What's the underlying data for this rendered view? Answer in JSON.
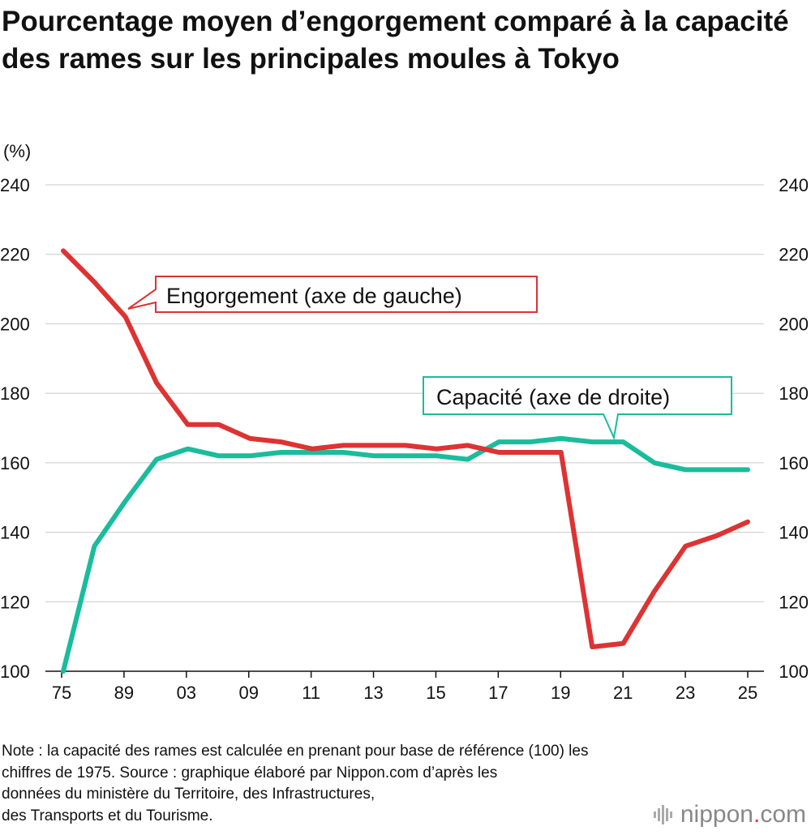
{
  "chart_data": {
    "type": "line",
    "title": "Pourcentage moyen d’engorgement comparé à la capacité des rames sur les principales moules à Tokyo",
    "unit_label": "(%)",
    "x_tick_labels": [
      "75",
      "89",
      "03",
      "09",
      "11",
      "13",
      "15",
      "17",
      "19",
      "21",
      "23",
      "25"
    ],
    "left_axis": {
      "ylim": [
        100,
        240
      ],
      "ticks": [
        100,
        120,
        140,
        160,
        180,
        200,
        220,
        240
      ]
    },
    "right_axis": {
      "ylim": [
        100,
        240
      ],
      "ticks": [
        100,
        120,
        140,
        160,
        180,
        200,
        220,
        240
      ]
    },
    "grid": true,
    "series": [
      {
        "name": "Engorgement (axe de gauche)",
        "axis": "left",
        "color": "#dd3333",
        "x": [
          0,
          1,
          2,
          3,
          4,
          5,
          6,
          7,
          8,
          9,
          10,
          11,
          12,
          13,
          14,
          15,
          16,
          17,
          18,
          19,
          20,
          21,
          22
        ],
        "values": [
          221,
          212,
          202,
          183,
          171,
          171,
          167,
          166,
          164,
          165,
          165,
          165,
          164,
          165,
          163,
          163,
          163,
          107,
          108,
          123,
          136,
          139,
          143
        ]
      },
      {
        "name": "Capacité (axe de droite)",
        "axis": "right",
        "color": "#1abc9c",
        "x": [
          0,
          1,
          2,
          3,
          4,
          5,
          6,
          7,
          8,
          9,
          10,
          11,
          12,
          13,
          14,
          15,
          16,
          17,
          18,
          19,
          20,
          21,
          22
        ],
        "values": [
          100,
          136,
          149,
          161,
          164,
          162,
          162,
          163,
          163,
          163,
          162,
          162,
          162,
          161,
          166,
          166,
          167,
          166,
          166,
          160,
          158,
          158,
          158
        ]
      }
    ]
  },
  "note": {
    "line1": "Note : la capacité des rames est calculée en prenant pour base de référence (100) les",
    "line2": "chiffres de 1975. Source : graphique élaboré par Nippon.com d’après les",
    "line3": "données du ministère du Territoire, des Infrastructures,",
    "line4": "des Transports et du Tourisme."
  },
  "logo": {
    "text_main": "nippon",
    "text_dot": ".",
    "text_suffix": "com",
    "icon": "sound-bars-icon"
  }
}
